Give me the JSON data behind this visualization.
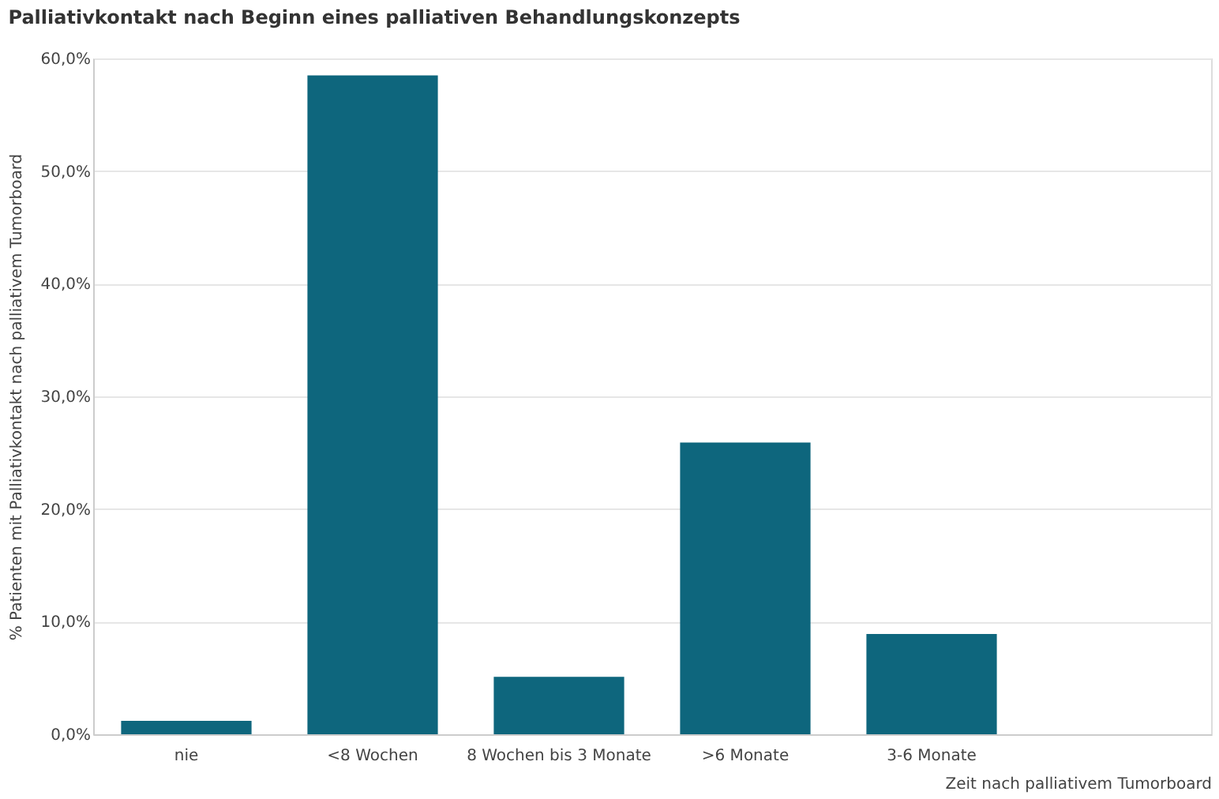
{
  "chart_data": {
    "type": "bar",
    "title": "Palliativkontakt nach Beginn eines palliativen Behandlungskonzepts",
    "xlabel": "Zeit nach palliativem Tumorboard",
    "ylabel": "% Patienten mit Palliativkontakt nach palliativem Tumorboard",
    "categories": [
      "nie",
      "<8 Wochen",
      "8 Wochen bis 3 Monate",
      ">6 Monate",
      "3-6 Monate",
      null
    ],
    "values": [
      1.2,
      58.5,
      5.1,
      25.9,
      8.9,
      null
    ],
    "color": "#0e667d",
    "ylim": [
      0,
      60
    ],
    "yticks": [
      {
        "value": 0,
        "label": "0,0%"
      },
      {
        "value": 10,
        "label": "10,0%"
      },
      {
        "value": 20,
        "label": "20,0%"
      },
      {
        "value": 30,
        "label": "30,0%"
      },
      {
        "value": 40,
        "label": "40,0%"
      },
      {
        "value": 50,
        "label": "50,0%"
      },
      {
        "value": 60,
        "label": "60,0%"
      }
    ],
    "grid": "y"
  }
}
